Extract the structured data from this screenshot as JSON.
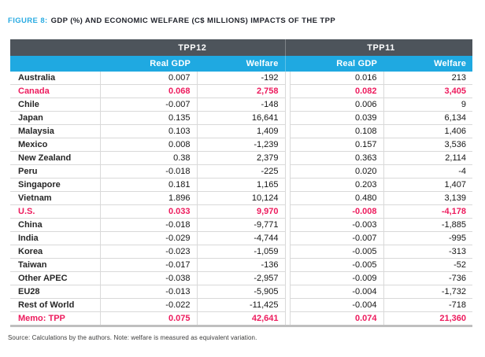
{
  "title": {
    "prefix": "FIGURE 8:",
    "text": "GDP (%) AND ECONOMIC WELFARE (C$ MILLIONS) IMPACTS OF THE TPP"
  },
  "table": {
    "group_headers": [
      "TPP12",
      "TPP11"
    ],
    "column_headers": [
      "Real GDP",
      "Welfare",
      "Real GDP",
      "Welfare"
    ],
    "rows": [
      {
        "label": "Australia",
        "values": [
          "0.007",
          "-192",
          "0.016",
          "213"
        ],
        "highlight": false
      },
      {
        "label": "Canada",
        "values": [
          "0.068",
          "2,758",
          "0.082",
          "3,405"
        ],
        "highlight": true
      },
      {
        "label": "Chile",
        "values": [
          "-0.007",
          "-148",
          "0.006",
          "9"
        ],
        "highlight": false
      },
      {
        "label": "Japan",
        "values": [
          "0.135",
          "16,641",
          "0.039",
          "6,134"
        ],
        "highlight": false
      },
      {
        "label": "Malaysia",
        "values": [
          "0.103",
          "1,409",
          "0.108",
          "1,406"
        ],
        "highlight": false
      },
      {
        "label": "Mexico",
        "values": [
          "0.008",
          "-1,239",
          "0.157",
          "3,536"
        ],
        "highlight": false
      },
      {
        "label": "New Zealand",
        "values": [
          "0.38",
          "2,379",
          "0.363",
          "2,114"
        ],
        "highlight": false
      },
      {
        "label": "Peru",
        "values": [
          "-0.018",
          "-225",
          "0.020",
          "-4"
        ],
        "highlight": false
      },
      {
        "label": "Singapore",
        "values": [
          "0.181",
          "1,165",
          "0.203",
          "1,407"
        ],
        "highlight": false
      },
      {
        "label": "Vietnam",
        "values": [
          "1.896",
          "10,124",
          "0.480",
          "3,139"
        ],
        "highlight": false
      },
      {
        "label": "U.S.",
        "values": [
          "0.033",
          "9,970",
          "-0.008",
          "-4,178"
        ],
        "highlight": true
      },
      {
        "label": "China",
        "values": [
          "-0.018",
          "-9,771",
          "-0.003",
          "-1,885"
        ],
        "highlight": false
      },
      {
        "label": "India",
        "values": [
          "-0.029",
          "-4,744",
          "-0.007",
          "-995"
        ],
        "highlight": false
      },
      {
        "label": "Korea",
        "values": [
          "-0.023",
          "-1,059",
          "-0.005",
          "-313"
        ],
        "highlight": false
      },
      {
        "label": "Taiwan",
        "values": [
          "-0.017",
          "-136",
          "-0.005",
          "-52"
        ],
        "highlight": false
      },
      {
        "label": "Other APEC",
        "values": [
          "-0.038",
          "-2,957",
          "-0.009",
          "-736"
        ],
        "highlight": false
      },
      {
        "label": "EU28",
        "values": [
          "-0.013",
          "-5,905",
          "-0.004",
          "-1,732"
        ],
        "highlight": false
      },
      {
        "label": "Rest of World",
        "values": [
          "-0.022",
          "-11,425",
          "-0.004",
          "-718"
        ],
        "highlight": false
      },
      {
        "label": "Memo: TPP",
        "values": [
          "0.075",
          "42,641",
          "0.074",
          "21,360"
        ],
        "highlight": true
      }
    ]
  },
  "footnote": "Source: Calculations by the authors. Note: welfare is measured as equivalent variation.",
  "colors": {
    "accent_blue": "#29abe2",
    "header_dark": "#4d545b",
    "header_blue": "#1fa9e1",
    "highlight_red": "#ed1b5d",
    "row_border": "#d9d9d9"
  }
}
